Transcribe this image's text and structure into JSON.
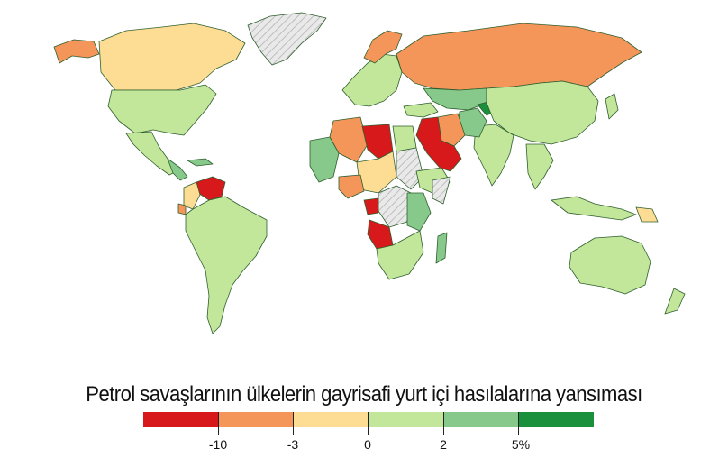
{
  "title": "Petrol savaşlarının ülkelerin gayrisafi yurt içi hasılalarına yansıması",
  "legend": {
    "colors": [
      "#d7191c",
      "#f4955a",
      "#fddc94",
      "#c2e69a",
      "#86c98a",
      "#1a8f3c"
    ],
    "ticks": [
      "-10",
      "-3",
      "0",
      "2",
      "5%"
    ]
  },
  "map_colors": {
    "red": "#d7191c",
    "orange": "#f4955a",
    "yellow": "#fddc94",
    "light_green": "#c2e69a",
    "mid_green": "#86c98a",
    "dark_green": "#1a8f3c",
    "no_data": "#e6e6e6"
  }
}
